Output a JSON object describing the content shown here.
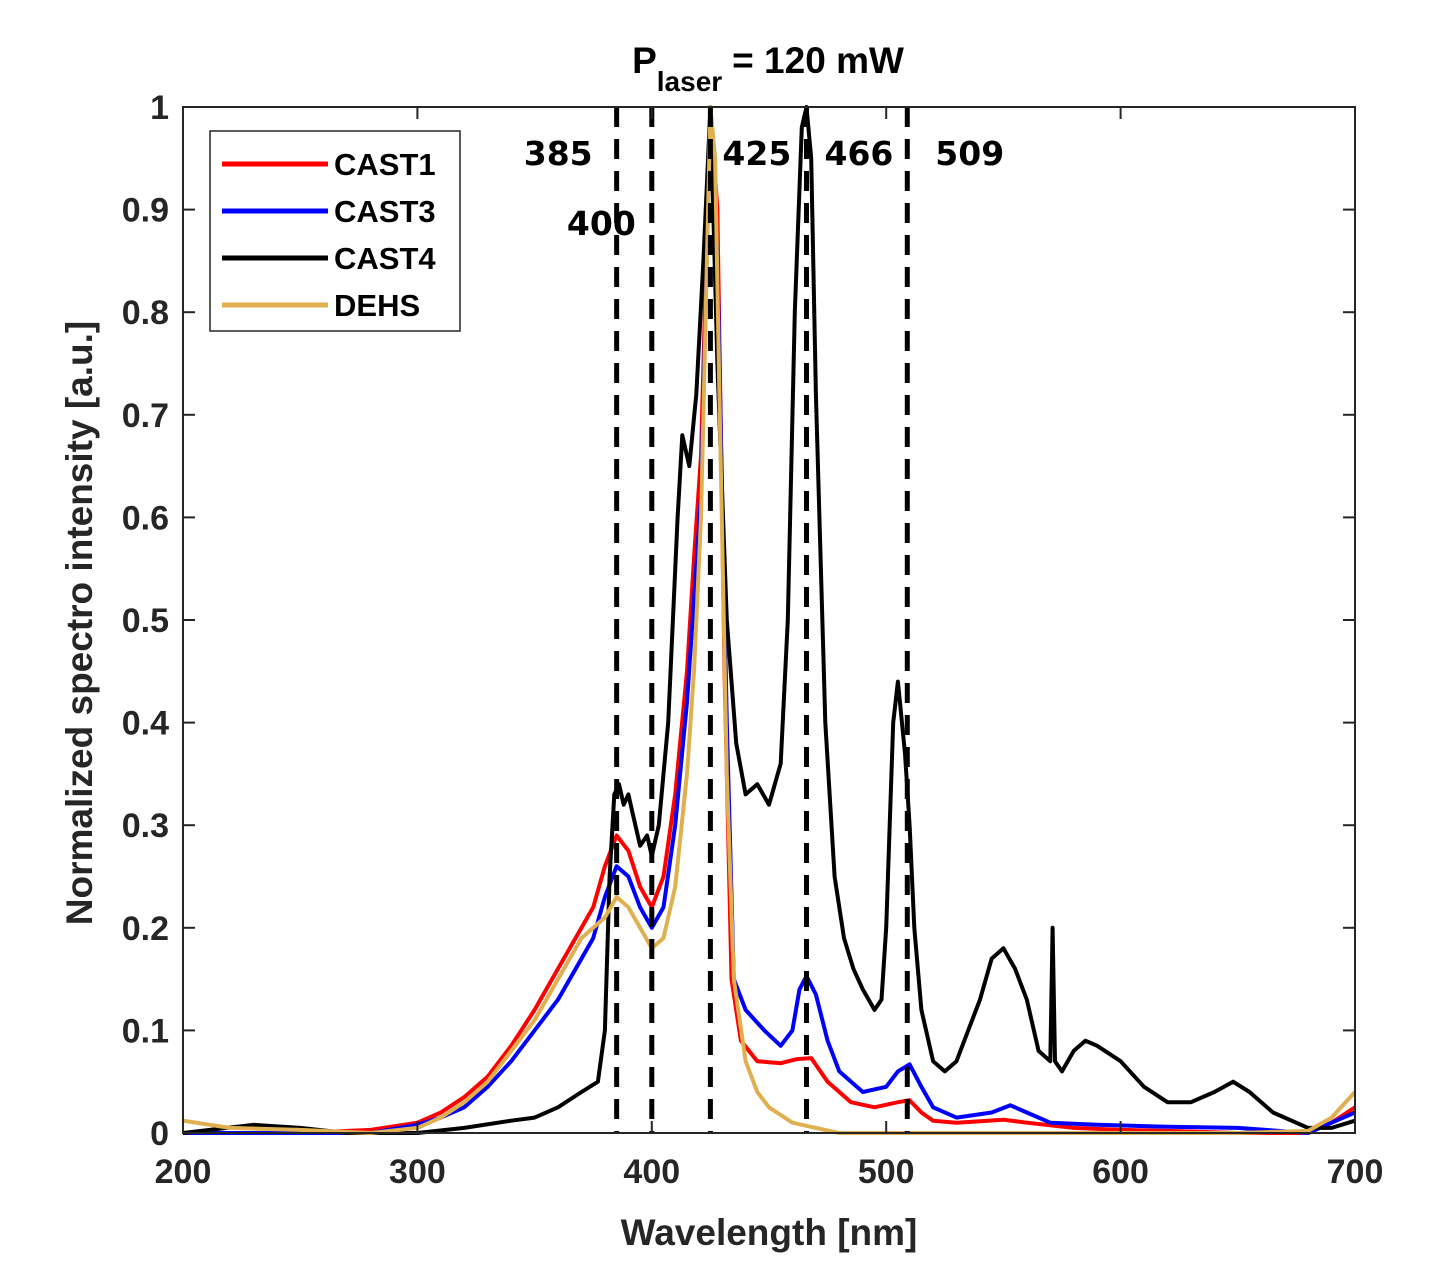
{
  "chart_data": {
    "type": "line",
    "title_main": "P",
    "title_sub": "laser",
    "title_rest": "= 120 mW",
    "xlabel": "Wavelength [nm]",
    "ylabel": "Normalized spectro intensity [a.u.]",
    "xlim": [
      200,
      700
    ],
    "ylim": [
      0,
      1
    ],
    "xticks": [
      200,
      300,
      400,
      500,
      600,
      700
    ],
    "yticks": [
      0,
      0.1,
      0.2,
      0.3,
      0.4,
      0.5,
      0.6,
      0.7,
      0.8,
      0.9,
      1
    ],
    "ytick_labels": [
      "0",
      "0.1",
      "0.2",
      "0.3",
      "0.4",
      "0.5",
      "0.6",
      "0.7",
      "0.8",
      "0.9",
      "1"
    ],
    "grid": false,
    "legend_position": "top-left",
    "reference_lines": [
      {
        "x": 385,
        "label": "385",
        "style": "dashed"
      },
      {
        "x": 400,
        "label": "400",
        "style": "dashed"
      },
      {
        "x": 425,
        "label": "425",
        "style": "dashed"
      },
      {
        "x": 466,
        "label": "466",
        "style": "dashed"
      },
      {
        "x": 509,
        "label": "509",
        "style": "dashed"
      }
    ],
    "series": [
      {
        "name": "CAST1",
        "color": "#ff0000",
        "points": [
          [
            200,
            0.0
          ],
          [
            250,
            0.0
          ],
          [
            280,
            0.003
          ],
          [
            300,
            0.01
          ],
          [
            310,
            0.02
          ],
          [
            320,
            0.035
          ],
          [
            330,
            0.055
          ],
          [
            340,
            0.085
          ],
          [
            350,
            0.12
          ],
          [
            360,
            0.16
          ],
          [
            370,
            0.2
          ],
          [
            375,
            0.22
          ],
          [
            380,
            0.26
          ],
          [
            385,
            0.29
          ],
          [
            390,
            0.275
          ],
          [
            395,
            0.24
          ],
          [
            400,
            0.22
          ],
          [
            405,
            0.25
          ],
          [
            410,
            0.33
          ],
          [
            415,
            0.45
          ],
          [
            418,
            0.56
          ],
          [
            421,
            0.66
          ],
          [
            425,
            1.0
          ],
          [
            428,
            0.9
          ],
          [
            431,
            0.45
          ],
          [
            434,
            0.15
          ],
          [
            438,
            0.09
          ],
          [
            445,
            0.07
          ],
          [
            455,
            0.068
          ],
          [
            462,
            0.072
          ],
          [
            468,
            0.073
          ],
          [
            475,
            0.05
          ],
          [
            485,
            0.03
          ],
          [
            495,
            0.025
          ],
          [
            505,
            0.03
          ],
          [
            510,
            0.032
          ],
          [
            515,
            0.02
          ],
          [
            520,
            0.012
          ],
          [
            530,
            0.01
          ],
          [
            550,
            0.013
          ],
          [
            560,
            0.01
          ],
          [
            580,
            0.005
          ],
          [
            600,
            0.003
          ],
          [
            620,
            0.002
          ],
          [
            650,
            0.0
          ],
          [
            680,
            0.0
          ],
          [
            690,
            0.01
          ],
          [
            700,
            0.025
          ]
        ]
      },
      {
        "name": "CAST3",
        "color": "#0000ff",
        "points": [
          [
            200,
            0.0
          ],
          [
            250,
            0.0
          ],
          [
            280,
            0.0
          ],
          [
            300,
            0.008
          ],
          [
            310,
            0.015
          ],
          [
            320,
            0.025
          ],
          [
            330,
            0.045
          ],
          [
            340,
            0.07
          ],
          [
            350,
            0.1
          ],
          [
            360,
            0.13
          ],
          [
            370,
            0.17
          ],
          [
            375,
            0.19
          ],
          [
            380,
            0.23
          ],
          [
            385,
            0.26
          ],
          [
            390,
            0.25
          ],
          [
            395,
            0.22
          ],
          [
            400,
            0.2
          ],
          [
            405,
            0.22
          ],
          [
            410,
            0.3
          ],
          [
            415,
            0.42
          ],
          [
            418,
            0.52
          ],
          [
            421,
            0.62
          ],
          [
            425,
            1.0
          ],
          [
            428,
            0.85
          ],
          [
            432,
            0.4
          ],
          [
            435,
            0.15
          ],
          [
            440,
            0.12
          ],
          [
            448,
            0.1
          ],
          [
            455,
            0.085
          ],
          [
            460,
            0.1
          ],
          [
            463,
            0.14
          ],
          [
            466,
            0.153
          ],
          [
            470,
            0.135
          ],
          [
            475,
            0.09
          ],
          [
            480,
            0.06
          ],
          [
            490,
            0.04
          ],
          [
            500,
            0.045
          ],
          [
            505,
            0.06
          ],
          [
            510,
            0.067
          ],
          [
            515,
            0.045
          ],
          [
            520,
            0.025
          ],
          [
            530,
            0.015
          ],
          [
            545,
            0.02
          ],
          [
            553,
            0.027
          ],
          [
            560,
            0.02
          ],
          [
            570,
            0.01
          ],
          [
            590,
            0.008
          ],
          [
            620,
            0.006
          ],
          [
            650,
            0.005
          ],
          [
            680,
            0.0
          ],
          [
            690,
            0.01
          ],
          [
            700,
            0.02
          ]
        ]
      },
      {
        "name": "CAST4",
        "color": "#000000",
        "points": [
          [
            200,
            0.0
          ],
          [
            230,
            0.008
          ],
          [
            250,
            0.005
          ],
          [
            270,
            0.0
          ],
          [
            300,
            0.0
          ],
          [
            320,
            0.005
          ],
          [
            340,
            0.012
          ],
          [
            350,
            0.015
          ],
          [
            360,
            0.025
          ],
          [
            370,
            0.04
          ],
          [
            377,
            0.05
          ],
          [
            380,
            0.1
          ],
          [
            382,
            0.25
          ],
          [
            384,
            0.33
          ],
          [
            386,
            0.34
          ],
          [
            388,
            0.32
          ],
          [
            390,
            0.33
          ],
          [
            392,
            0.31
          ],
          [
            395,
            0.28
          ],
          [
            398,
            0.29
          ],
          [
            400,
            0.27
          ],
          [
            403,
            0.3
          ],
          [
            407,
            0.4
          ],
          [
            411,
            0.6
          ],
          [
            413,
            0.68
          ],
          [
            416,
            0.65
          ],
          [
            419,
            0.72
          ],
          [
            422,
            0.85
          ],
          [
            425,
            1.0
          ],
          [
            428,
            0.75
          ],
          [
            432,
            0.5
          ],
          [
            436,
            0.38
          ],
          [
            440,
            0.33
          ],
          [
            445,
            0.34
          ],
          [
            450,
            0.32
          ],
          [
            455,
            0.36
          ],
          [
            458,
            0.5
          ],
          [
            461,
            0.8
          ],
          [
            464,
            0.98
          ],
          [
            466,
            1.0
          ],
          [
            468,
            0.95
          ],
          [
            470,
            0.72
          ],
          [
            474,
            0.4
          ],
          [
            478,
            0.25
          ],
          [
            482,
            0.19
          ],
          [
            486,
            0.16
          ],
          [
            490,
            0.14
          ],
          [
            495,
            0.12
          ],
          [
            498,
            0.13
          ],
          [
            500,
            0.2
          ],
          [
            503,
            0.4
          ],
          [
            505,
            0.44
          ],
          [
            508,
            0.37
          ],
          [
            510,
            0.3
          ],
          [
            512,
            0.2
          ],
          [
            515,
            0.12
          ],
          [
            520,
            0.07
          ],
          [
            525,
            0.06
          ],
          [
            530,
            0.07
          ],
          [
            535,
            0.1
          ],
          [
            540,
            0.13
          ],
          [
            545,
            0.17
          ],
          [
            550,
            0.18
          ],
          [
            555,
            0.16
          ],
          [
            560,
            0.13
          ],
          [
            565,
            0.08
          ],
          [
            570,
            0.07
          ],
          [
            571,
            0.2
          ],
          [
            572,
            0.07
          ],
          [
            575,
            0.06
          ],
          [
            580,
            0.08
          ],
          [
            585,
            0.09
          ],
          [
            590,
            0.085
          ],
          [
            600,
            0.07
          ],
          [
            610,
            0.045
          ],
          [
            620,
            0.03
          ],
          [
            630,
            0.03
          ],
          [
            640,
            0.04
          ],
          [
            648,
            0.05
          ],
          [
            655,
            0.04
          ],
          [
            665,
            0.02
          ],
          [
            680,
            0.005
          ],
          [
            690,
            0.005
          ],
          [
            700,
            0.012
          ]
        ]
      },
      {
        "name": "DEHS",
        "color": "#e0b050",
        "points": [
          [
            200,
            0.012
          ],
          [
            220,
            0.005
          ],
          [
            250,
            0.003
          ],
          [
            280,
            0.0
          ],
          [
            300,
            0.005
          ],
          [
            310,
            0.015
          ],
          [
            320,
            0.03
          ],
          [
            330,
            0.05
          ],
          [
            340,
            0.08
          ],
          [
            350,
            0.11
          ],
          [
            360,
            0.15
          ],
          [
            370,
            0.19
          ],
          [
            380,
            0.21
          ],
          [
            385,
            0.23
          ],
          [
            390,
            0.22
          ],
          [
            395,
            0.2
          ],
          [
            400,
            0.18
          ],
          [
            405,
            0.19
          ],
          [
            410,
            0.24
          ],
          [
            415,
            0.35
          ],
          [
            418,
            0.45
          ],
          [
            421,
            0.6
          ],
          [
            424,
            0.9
          ],
          [
            425,
            1.0
          ],
          [
            427,
            0.95
          ],
          [
            429,
            0.7
          ],
          [
            432,
            0.35
          ],
          [
            435,
            0.15
          ],
          [
            440,
            0.07
          ],
          [
            445,
            0.04
          ],
          [
            450,
            0.025
          ],
          [
            460,
            0.01
          ],
          [
            470,
            0.005
          ],
          [
            480,
            0.0
          ],
          [
            500,
            0.0
          ],
          [
            600,
            0.0
          ],
          [
            650,
            0.0
          ],
          [
            680,
            0.002
          ],
          [
            690,
            0.015
          ],
          [
            700,
            0.04
          ]
        ]
      }
    ]
  }
}
